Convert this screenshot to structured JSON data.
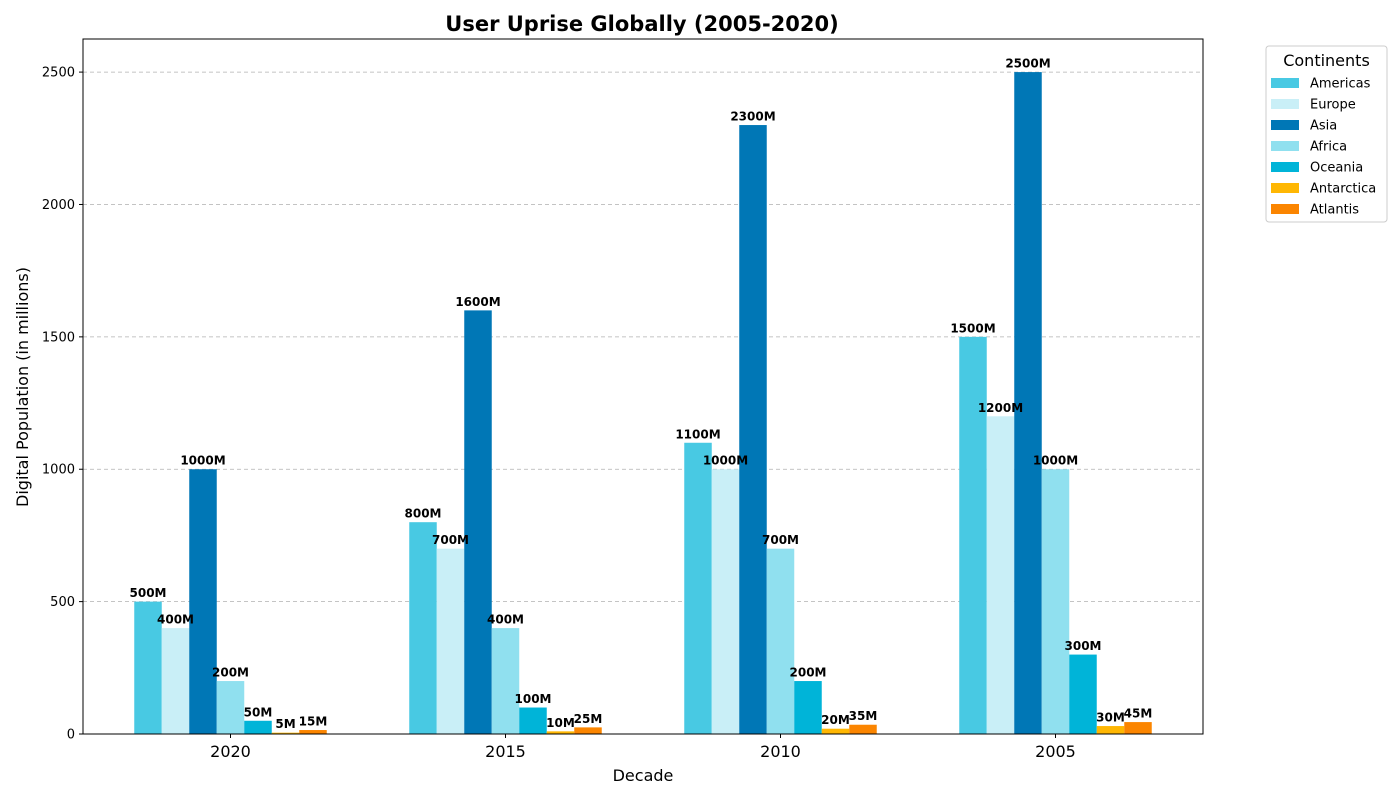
{
  "chart_data": {
    "type": "bar",
    "title": "User Uprise Globally (2005-2020)",
    "xlabel": "Decade",
    "ylabel": "Digital Population (in millions)",
    "categories": [
      "2020",
      "2015",
      "2010",
      "2005"
    ],
    "ylim": [
      0,
      2625
    ],
    "yticks": [
      0,
      500,
      1000,
      1500,
      2000,
      2500
    ],
    "value_label_suffix": "M",
    "grid": "horizontal dashed",
    "legend": {
      "title": "Continents",
      "placement": "outside top-right"
    },
    "series": [
      {
        "name": "Americas",
        "color": "#48C9E3",
        "values": [
          500,
          800,
          1100,
          1500
        ]
      },
      {
        "name": "Europe",
        "color": "#C9EFF7",
        "values": [
          400,
          700,
          1000,
          1200
        ]
      },
      {
        "name": "Asia",
        "color": "#0077B6",
        "values": [
          1000,
          1600,
          2300,
          2500
        ]
      },
      {
        "name": "Africa",
        "color": "#90E0EF",
        "values": [
          200,
          400,
          700,
          1000
        ]
      },
      {
        "name": "Oceania",
        "color": "#00B4D8",
        "values": [
          50,
          100,
          200,
          300
        ]
      },
      {
        "name": "Antarctica",
        "color": "#FFB703",
        "values": [
          5,
          10,
          20,
          30
        ]
      },
      {
        "name": "Atlantis",
        "color": "#FB8500",
        "values": [
          15,
          25,
          35,
          45
        ]
      }
    ]
  }
}
